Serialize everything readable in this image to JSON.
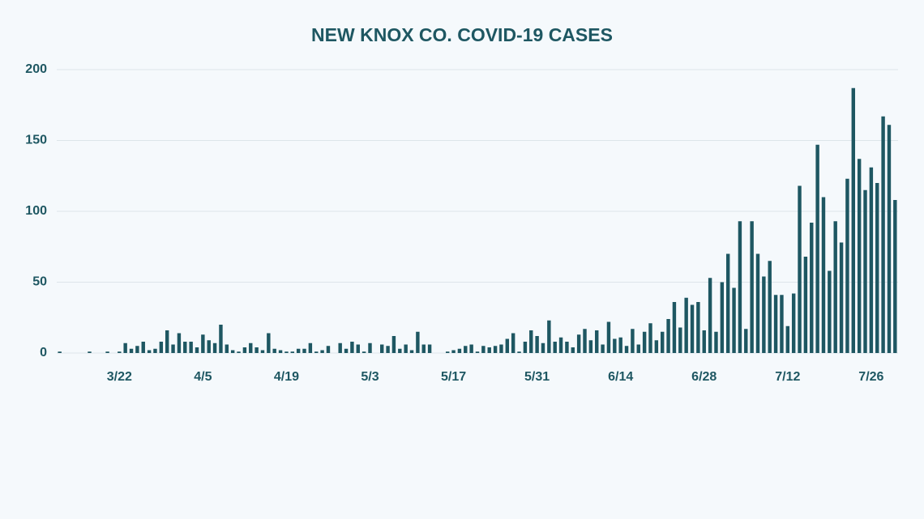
{
  "chart_data": {
    "type": "bar",
    "title": "NEW KNOX CO. COVID-19 CASES",
    "categories": [
      null,
      null,
      null,
      null,
      null,
      null,
      null,
      null,
      null,
      null,
      "3/22",
      null,
      null,
      null,
      null,
      null,
      null,
      null,
      null,
      null,
      null,
      null,
      null,
      null,
      "4/5",
      null,
      null,
      null,
      null,
      null,
      null,
      null,
      null,
      null,
      null,
      null,
      null,
      null,
      "4/19",
      null,
      null,
      null,
      null,
      null,
      null,
      null,
      null,
      null,
      null,
      null,
      null,
      null,
      "5/3",
      null,
      null,
      null,
      null,
      null,
      null,
      null,
      null,
      null,
      null,
      null,
      null,
      null,
      "5/17",
      null,
      null,
      null,
      null,
      null,
      null,
      null,
      null,
      null,
      null,
      null,
      null,
      null,
      "5/31",
      null,
      null,
      null,
      null,
      null,
      null,
      null,
      null,
      null,
      null,
      null,
      null,
      null,
      "6/14",
      null,
      null,
      null,
      null,
      null,
      null,
      null,
      null,
      null,
      null,
      null,
      null,
      null,
      "6/28",
      null,
      null,
      null,
      null,
      null,
      null,
      null,
      null,
      null,
      null,
      null,
      null,
      null,
      "7/12",
      null,
      null,
      null,
      null,
      null,
      null,
      null,
      null,
      null,
      null,
      null,
      null,
      null,
      "7/26",
      null,
      null,
      null,
      null
    ],
    "values": [
      1,
      0,
      0,
      0,
      0,
      1,
      0,
      0,
      1,
      0,
      1,
      7,
      3,
      5,
      8,
      2,
      3,
      8,
      16,
      6,
      14,
      8,
      8,
      4,
      13,
      9,
      7,
      20,
      6,
      2,
      1,
      4,
      7,
      4,
      2,
      14,
      3,
      2,
      1,
      1,
      3,
      3,
      7,
      1,
      2,
      5,
      0,
      7,
      3,
      8,
      6,
      1,
      7,
      0,
      6,
      5,
      12,
      3,
      6,
      2,
      15,
      6,
      6,
      0,
      0,
      1,
      2,
      3,
      5,
      6,
      1,
      5,
      4,
      5,
      6,
      10,
      14,
      1,
      8,
      16,
      12,
      7,
      23,
      8,
      11,
      8,
      4,
      13,
      17,
      9,
      16,
      6,
      22,
      10,
      11,
      5,
      17,
      6,
      15,
      21,
      9,
      15,
      24,
      36,
      18,
      39,
      34,
      36,
      16,
      53,
      15,
      50,
      70,
      46,
      93,
      17,
      93,
      70,
      54,
      65,
      41,
      41,
      19,
      42,
      118,
      68,
      92,
      147,
      110,
      58,
      93,
      78,
      123,
      187,
      137,
      115,
      131,
      120,
      167,
      161,
      108
    ],
    "color": "#1e5762",
    "ylim": [
      0,
      200
    ],
    "yticks": [
      0,
      50,
      100,
      150,
      200
    ],
    "grid": true
  }
}
